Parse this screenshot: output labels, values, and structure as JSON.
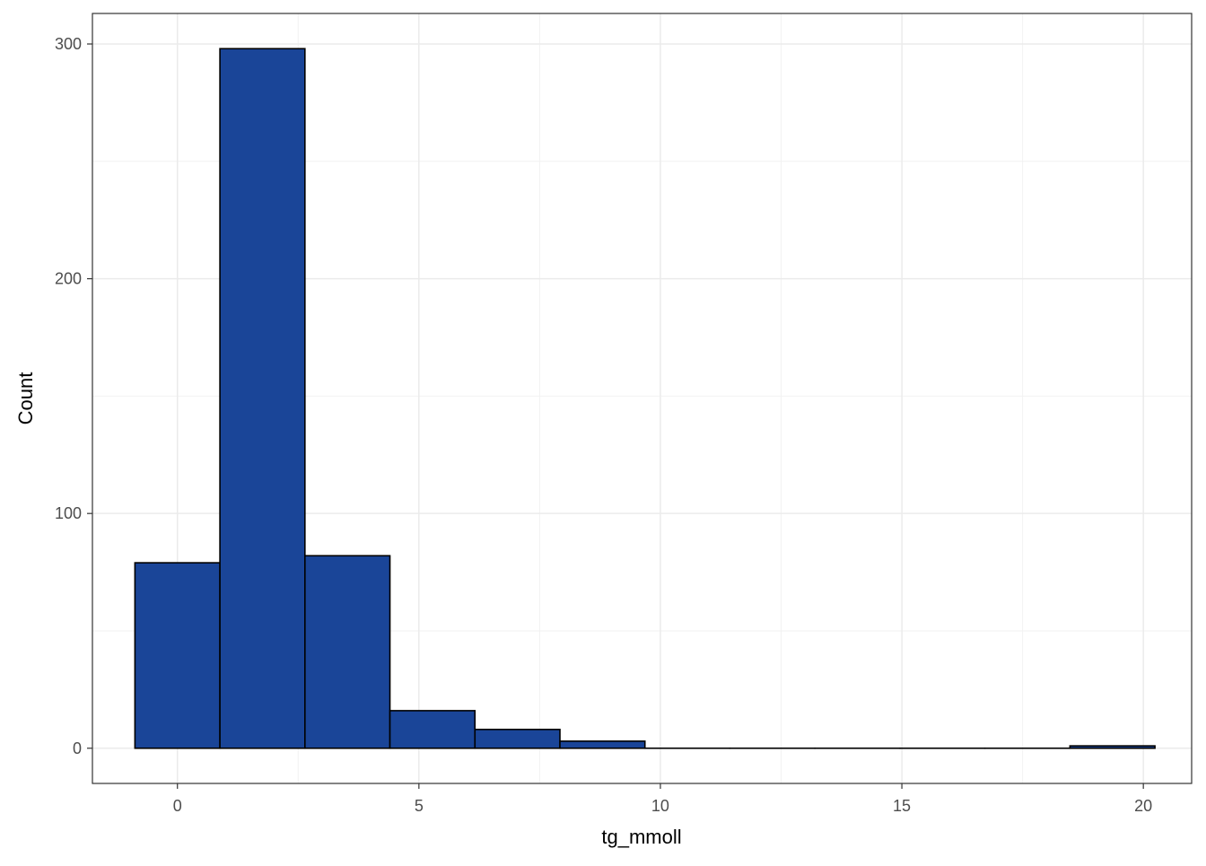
{
  "chart_data": {
    "type": "bar",
    "subtype": "histogram",
    "title": "",
    "xlabel": "tg_mmoll",
    "ylabel": "Count",
    "xlim": [
      -1.76,
      21.0
    ],
    "ylim": [
      -15,
      313
    ],
    "x_ticks": [
      0,
      5,
      10,
      15,
      20
    ],
    "x_tick_labels": [
      "0",
      "5",
      "10",
      "15",
      "20"
    ],
    "y_ticks": [
      0,
      100,
      200,
      300
    ],
    "y_tick_labels": [
      "0",
      "100",
      "200",
      "300"
    ],
    "grid": true,
    "legend": "none",
    "colors": {
      "bar_fill": "#1a4598",
      "bar_stroke": "#000000",
      "grid_major": "#ebebeb",
      "grid_minor": "#f2f2f2",
      "panel_border": "#333333"
    },
    "bins": [
      {
        "x0": -0.88,
        "x1": 0.88,
        "count": 79
      },
      {
        "x0": 0.88,
        "x1": 2.64,
        "count": 298
      },
      {
        "x0": 2.64,
        "x1": 4.4,
        "count": 82
      },
      {
        "x0": 4.4,
        "x1": 6.16,
        "count": 16
      },
      {
        "x0": 6.16,
        "x1": 7.92,
        "count": 8
      },
      {
        "x0": 7.92,
        "x1": 9.68,
        "count": 3
      },
      {
        "x0": 9.68,
        "x1": 11.44,
        "count": 0
      },
      {
        "x0": 11.44,
        "x1": 13.2,
        "count": 0
      },
      {
        "x0": 13.2,
        "x1": 14.96,
        "count": 0
      },
      {
        "x0": 14.96,
        "x1": 16.72,
        "count": 0
      },
      {
        "x0": 16.72,
        "x1": 18.48,
        "count": 0
      },
      {
        "x0": 18.48,
        "x1": 20.24,
        "count": 1
      }
    ]
  }
}
